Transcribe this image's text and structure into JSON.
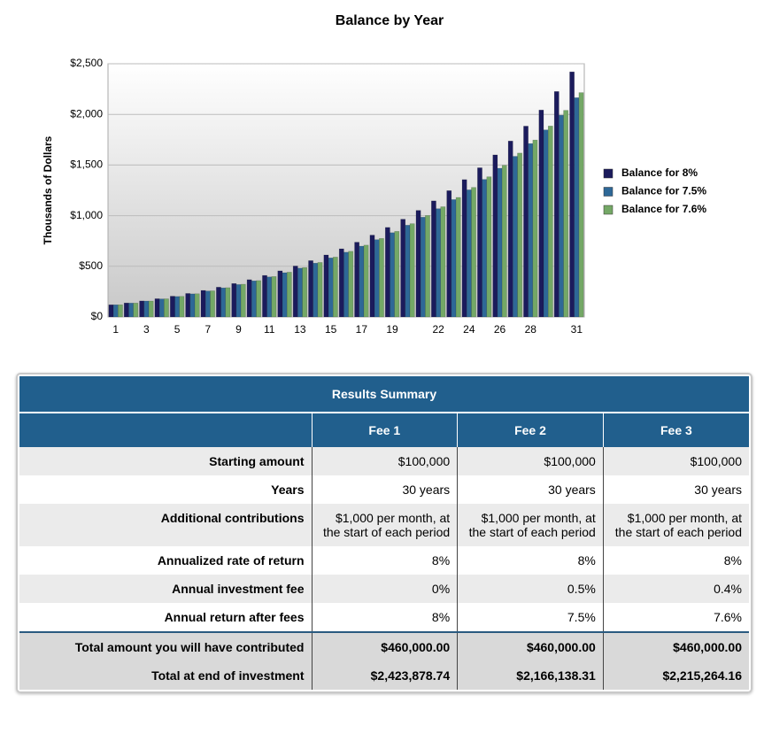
{
  "chart_data": {
    "type": "bar",
    "title": "Balance by Year",
    "y_label": "Thousands of Dollars",
    "categories": [
      "1",
      null,
      "3",
      null,
      "5",
      null,
      "7",
      null,
      "9",
      null,
      "11",
      null,
      "13",
      null,
      "15",
      null,
      "17",
      null,
      "19",
      null,
      null,
      "22",
      null,
      "24",
      null,
      "26",
      null,
      "28",
      null,
      null,
      "31"
    ],
    "series": [
      {
        "name": "Balance for 8%",
        "color": "#1b1b5c",
        "values": [
          120,
          138,
          158,
          180,
          205,
          232,
          262,
          294,
          330,
          368,
          410,
          455,
          503,
          556,
          612,
          673,
          738,
          808,
          884,
          965,
          1052,
          1146,
          1247,
          1356,
          1473,
          1600,
          1737,
          1884,
          2043,
          2226,
          2420
        ]
      },
      {
        "name": "Balance for 7.5%",
        "color": "#2e6897",
        "values": [
          120,
          137,
          157,
          178,
          202,
          228,
          256,
          287,
          320,
          356,
          395,
          437,
          482,
          531,
          583,
          639,
          699,
          763,
          832,
          906,
          985,
          1069,
          1159,
          1255,
          1358,
          1468,
          1586,
          1712,
          1847,
          1992,
          2165
        ]
      },
      {
        "name": "Balance for 7.6%",
        "color": "#74a866",
        "values": [
          120,
          137,
          157,
          179,
          203,
          229,
          258,
          289,
          323,
          359,
          399,
          442,
          488,
          538,
          591,
          648,
          709,
          775,
          845,
          921,
          1002,
          1088,
          1180,
          1279,
          1384,
          1497,
          1618,
          1747,
          1885,
          2040,
          2215
        ]
      }
    ],
    "ylim": [
      0,
      2500
    ],
    "yticks": [
      {
        "value": 0,
        "label": "$0"
      },
      {
        "value": 500,
        "label": "$500"
      },
      {
        "value": 1000,
        "label": "$1,000"
      },
      {
        "value": 1500,
        "label": "$1,500"
      },
      {
        "value": 2000,
        "label": "$2,000"
      },
      {
        "value": 2500,
        "label": "$2,500"
      }
    ],
    "grid": true,
    "legend": "right"
  },
  "table": {
    "title": "Results Summary",
    "columns": [
      "Fee 1",
      "Fee 2",
      "Fee 3"
    ],
    "rows": [
      [
        "Starting amount",
        "$100,000",
        "$100,000",
        "$100,000"
      ],
      [
        "Years",
        "30 years",
        "30 years",
        "30 years"
      ],
      [
        "Additional contributions",
        "$1,000 per month, at the start of each period",
        "$1,000 per month, at the start of each period",
        "$1,000 per month, at the start of each period"
      ],
      [
        "Annualized rate of return",
        "8%",
        "8%",
        "8%"
      ],
      [
        "Annual investment fee",
        "0%",
        "0.5%",
        "0.4%"
      ],
      [
        "Annual return after fees",
        "8%",
        "7.5%",
        "7.6%"
      ]
    ],
    "totals": [
      [
        "Total amount you will have contributed",
        "$460,000.00",
        "$460,000.00",
        "$460,000.00"
      ],
      [
        "Total at end of investment",
        "$2,423,878.74",
        "$2,166,138.31",
        "$2,215,264.16"
      ]
    ]
  }
}
